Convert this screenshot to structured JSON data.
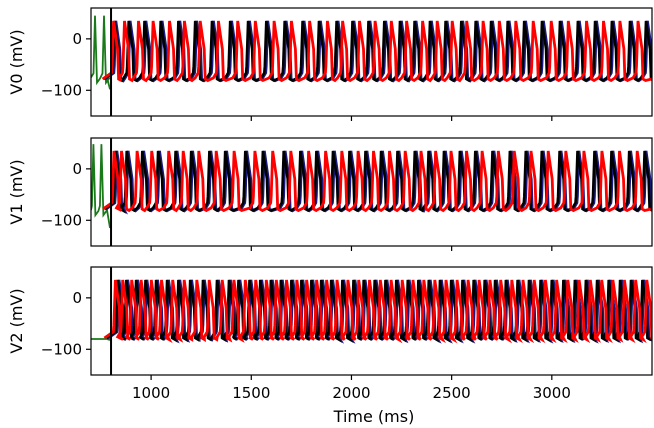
{
  "chart_data": {
    "type": "line",
    "xlabel": "Time (ms)",
    "xlim": [
      700,
      3500
    ],
    "x_ticks": [
      1000,
      1500,
      2000,
      2500,
      3000
    ],
    "x_tick_labels": [
      "1000",
      "1500",
      "2000",
      "2500",
      "3000"
    ],
    "marker_line_x": 800,
    "colors": {
      "initial": "#1a7a1a",
      "black": "#000000",
      "red": "#ff0000",
      "navy": "#1a1a80"
    },
    "panels": [
      {
        "ylabel": "V0 (mV)",
        "ylim": [
          -150,
          60
        ],
        "y_ticks": [
          0,
          -100
        ],
        "y_tick_labels": [
          "0",
          "−100"
        ],
        "initial_trace": {
          "baseline": -75,
          "spike_times": [
            720,
            765
          ],
          "spike_peak": 45,
          "end_dip": -98
        },
        "black_spike_times": [
          817,
          888,
          967,
          1048,
          1136,
          1220,
          1304,
          1395,
          1484,
          1575,
          1667,
          1756,
          1838,
          1926,
          2005,
          2085,
          2164,
          2242,
          2315,
          2392,
          2470,
          2548,
          2620,
          2697,
          2780,
          2862,
          2951,
          3041,
          3130,
          3216,
          3300,
          3390,
          3470
        ],
        "red_spike_times": [
          813,
          867,
          937,
          1010,
          1092,
          1166,
          1245,
          1336,
          1432,
          1520,
          1614,
          1700,
          1791,
          1880,
          1956,
          2040,
          2118,
          2199,
          2275,
          2355,
          2428,
          2503,
          2575,
          2657,
          2738,
          2820,
          2907,
          2997,
          3082,
          3173,
          3258,
          3340,
          3430
        ],
        "spike_peak": 35,
        "trough": -78
      },
      {
        "ylabel": "V1 (mV)",
        "ylim": [
          -150,
          60
        ],
        "y_ticks": [
          0,
          -100
        ],
        "y_tick_labels": [
          "0",
          "−100"
        ],
        "initial_trace": {
          "baseline": -80,
          "spike_times": [
            712,
            752
          ],
          "spike_peak": 48,
          "end_dip": -115
        },
        "black_spike_times": [
          822,
          878,
          956,
          1035,
          1122,
          1200,
          1291,
          1370,
          1470,
          1558,
          1662,
          1745,
          1825,
          1908,
          1990,
          2070,
          2148,
          2230,
          2316,
          2385,
          2462,
          2541,
          2618,
          2704,
          2791,
          2870,
          2950,
          3039,
          3128,
          3213,
          3298,
          3386,
          3463
        ],
        "red_spike_times": [
          815,
          852,
          930,
          1003,
          1088,
          1160,
          1238,
          1325,
          1414,
          1518,
          1607,
          1697,
          1786,
          1871,
          1952,
          2033,
          2110,
          2190,
          2268,
          2347,
          2420,
          2497,
          2574,
          2652,
          2733,
          2812,
          2896,
          2982,
          3070,
          3160,
          3250,
          3338,
          3426
        ],
        "spike_peak": 35,
        "trough": -78
      },
      {
        "ylabel": "V2 (mV)",
        "ylim": [
          -150,
          60
        ],
        "y_ticks": [
          0,
          -100
        ],
        "y_tick_labels": [
          "0",
          "−100"
        ],
        "initial_trace": {
          "baseline": -80,
          "spike_times": [],
          "spike_peak": 0,
          "end_dip": -82
        },
        "black_spike_times": [
          833,
          876,
          925,
          972,
          1025,
          1080,
          1136,
          1195,
          1259,
          1329,
          1389,
          1436,
          1491,
          1545,
          1598,
          1648,
          1700,
          1750,
          1800,
          1849,
          1899,
          1955,
          2010,
          2061,
          2116,
          2170,
          2224,
          2281,
          2334,
          2386,
          2442,
          2498,
          2554,
          2610,
          2665,
          2717,
          2771,
          2829,
          2886,
          2944,
          3000,
          3058,
          3115,
          3170,
          3226,
          3284,
          3341,
          3395,
          3452
        ],
        "red_spike_times": [
          822,
          858,
          903,
          950,
          1001,
          1052,
          1108,
          1165,
          1228,
          1290,
          1355,
          1413,
          1470,
          1522,
          1575,
          1625,
          1676,
          1727,
          1776,
          1826,
          1876,
          1928,
          1982,
          2036,
          2090,
          2144,
          2198,
          2253,
          2307,
          2361,
          2416,
          2472,
          2527,
          2582,
          2637,
          2691,
          2745,
          2800,
          2856,
          2912,
          2968,
          3024,
          3080,
          3136,
          3192,
          3249,
          3305,
          3362,
          3418,
          3474
        ],
        "spike_peak": 35,
        "trough": -78
      }
    ]
  }
}
